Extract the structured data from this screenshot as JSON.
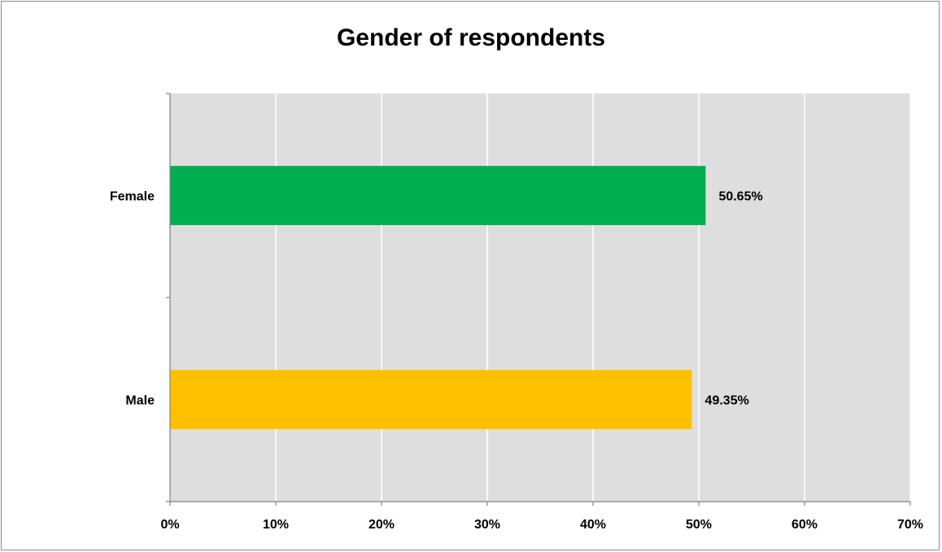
{
  "chart_data": {
    "type": "bar",
    "orientation": "horizontal",
    "title": "Gender of respondents",
    "categories": [
      "Female",
      "Male"
    ],
    "values": [
      50.65,
      49.35
    ],
    "value_labels": [
      "50.65%",
      "49.35%"
    ],
    "colors": [
      "#00b050",
      "#ffc000"
    ],
    "xlim": [
      0,
      70
    ],
    "xticks": [
      0,
      10,
      20,
      30,
      40,
      50,
      60,
      70
    ],
    "xtick_labels": [
      "0%",
      "10%",
      "20%",
      "30%",
      "40%",
      "50%",
      "60%",
      "70%"
    ],
    "plot_background": "#dedede",
    "grid": true,
    "legend": "none"
  }
}
